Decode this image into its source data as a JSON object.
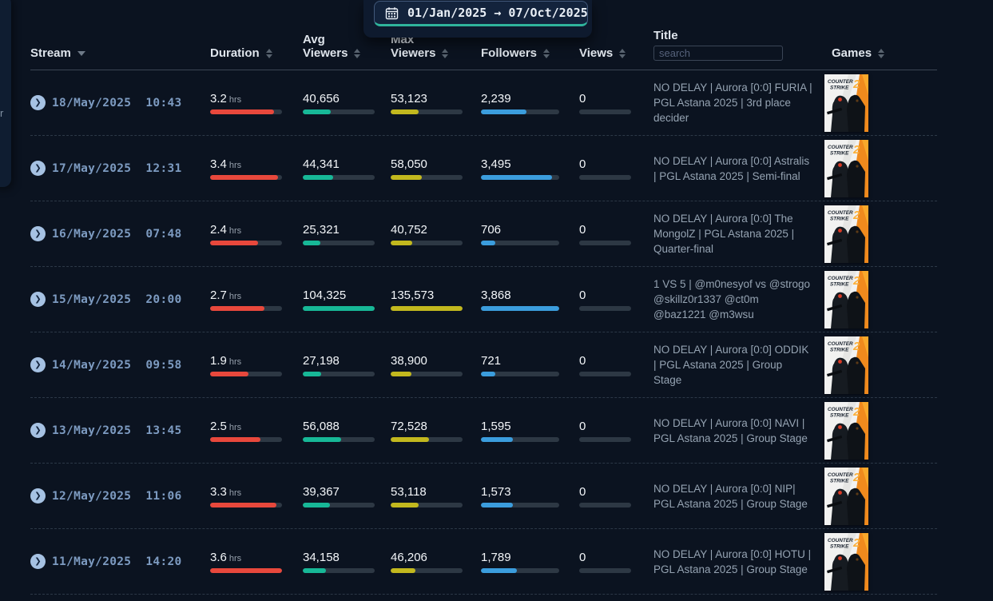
{
  "left_panel": {
    "fragment_text": "r"
  },
  "date_picker": {
    "range": "01/Jan/2025 → 07/Oct/2025"
  },
  "table": {
    "headers": {
      "stream": "Stream",
      "duration": "Duration",
      "avg_viewers_line1": "Avg",
      "avg_viewers_line2": "Viewers",
      "max_viewers_line1": "Max",
      "max_viewers_line2": "Viewers",
      "followers": "Followers",
      "views": "Views",
      "title": "Title",
      "title_search_placeholder": "search",
      "games": "Games"
    },
    "duration_unit": "hrs",
    "rows": [
      {
        "datetime": "18/May/2025  10:43",
        "duration": "3.2",
        "avg_viewers": "40,656",
        "max_viewers": "53,123",
        "followers": "2,239",
        "views": "0",
        "title": "NO DELAY | Aurora [0:0] FURIA | PGL Astana 2025 | 3rd place decider",
        "game": "Counter-Strike 2"
      },
      {
        "datetime": "17/May/2025  12:31",
        "duration": "3.4",
        "avg_viewers": "44,341",
        "max_viewers": "58,050",
        "followers": "3,495",
        "views": "0",
        "title": "NO DELAY | Aurora [0:0] Astralis | PGL Astana 2025 | Semi-final",
        "game": "Counter-Strike 2"
      },
      {
        "datetime": "16/May/2025  07:48",
        "duration": "2.4",
        "avg_viewers": "25,321",
        "max_viewers": "40,752",
        "followers": "706",
        "views": "0",
        "title": "NO DELAY | Aurora [0:0] The MongolZ | PGL Astana 2025 | Quarter-final",
        "game": "Counter-Strike 2"
      },
      {
        "datetime": "15/May/2025  20:00",
        "duration": "2.7",
        "avg_viewers": "104,325",
        "max_viewers": "135,573",
        "followers": "3,868",
        "views": "0",
        "title": "1 VS 5 | @m0nesyof vs @strogo @skillz0r1337 @ct0m @baz1221 @m3wsu",
        "game": "Counter-Strike 2"
      },
      {
        "datetime": "14/May/2025  09:58",
        "duration": "1.9",
        "avg_viewers": "27,198",
        "max_viewers": "38,900",
        "followers": "721",
        "views": "0",
        "title": "NO DELAY | Aurora [0:0] ODDIK | PGL Astana 2025 | Group Stage",
        "game": "Counter-Strike 2"
      },
      {
        "datetime": "13/May/2025  13:45",
        "duration": "2.5",
        "avg_viewers": "56,088",
        "max_viewers": "72,528",
        "followers": "1,595",
        "views": "0",
        "title": "NO DELAY | Aurora [0:0] NAVI | PGL Astana 2025 | Group Stage",
        "game": "Counter-Strike 2"
      },
      {
        "datetime": "12/May/2025  11:06",
        "duration": "3.3",
        "avg_viewers": "39,367",
        "max_viewers": "53,118",
        "followers": "1,573",
        "views": "0",
        "title": "NO DELAY | Aurora [0:0] NIP| PGL Astana 2025 | Group Stage",
        "game": "Counter-Strike 2"
      },
      {
        "datetime": "11/May/2025  14:20",
        "duration": "3.6",
        "avg_viewers": "34,158",
        "max_viewers": "46,206",
        "followers": "1,789",
        "views": "0",
        "title": "NO DELAY | Aurora [0:0] HOTU | PGL Astana 2025 | Group Stage",
        "game": "Counter-Strike 2"
      }
    ]
  },
  "game_cover": {
    "line1": "COUNTER",
    "line2": "STRIKE",
    "number": "2"
  },
  "colors": {
    "duration_bar": "#e8483c",
    "avg_bar": "#17b897",
    "max_bar": "#c2b81e",
    "followers_bar": "#3b9ddd",
    "bar_track": "#2d3844",
    "accent_teal": "#2fb49c"
  }
}
